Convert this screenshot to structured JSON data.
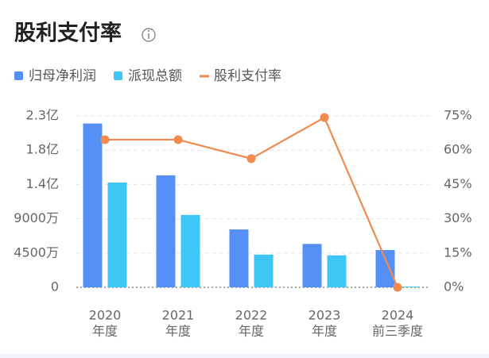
{
  "chart_data": {
    "type": "bar-line",
    "title": "股利支付率",
    "categories": [
      [
        "2020",
        "年度"
      ],
      [
        "2021",
        "年度"
      ],
      [
        "2022",
        "年度"
      ],
      [
        "2023",
        "年度"
      ],
      [
        "2024",
        "前三季度"
      ]
    ],
    "series": [
      {
        "name": "归母净利润",
        "color": "#5590f6",
        "type": "bar",
        "values": [
          21500,
          14700,
          7600,
          5700,
          4900
        ]
      },
      {
        "name": "派现总额",
        "color": "#3ec6f4",
        "type": "bar",
        "values": [
          13750,
          9500,
          4300,
          4200,
          100
        ]
      },
      {
        "name": "股利支付率",
        "color": "#f28a4f",
        "type": "line",
        "axis": "y2",
        "values": [
          64.6,
          64.6,
          56.3,
          74.3,
          0
        ]
      }
    ],
    "ylim": [
      0,
      22500
    ],
    "yticks": [
      0,
      {
        "value": 4500,
        "label": "4500万"
      },
      {
        "value": 9000,
        "label": "9000万"
      },
      {
        "value": 13500,
        "label": "1.4亿"
      },
      {
        "value": 18000,
        "label": "1.8亿"
      },
      {
        "value": 22500,
        "label": "2.3亿"
      }
    ],
    "y2lim": [
      0,
      75
    ],
    "y2ticks": [
      {
        "value": 0,
        "label": "0%"
      },
      {
        "value": 15,
        "label": "15%"
      },
      {
        "value": 30,
        "label": "30%"
      },
      {
        "value": 45,
        "label": "45%"
      },
      {
        "value": 60,
        "label": "60%"
      },
      {
        "value": 75,
        "label": "75%"
      }
    ],
    "grid": true
  }
}
